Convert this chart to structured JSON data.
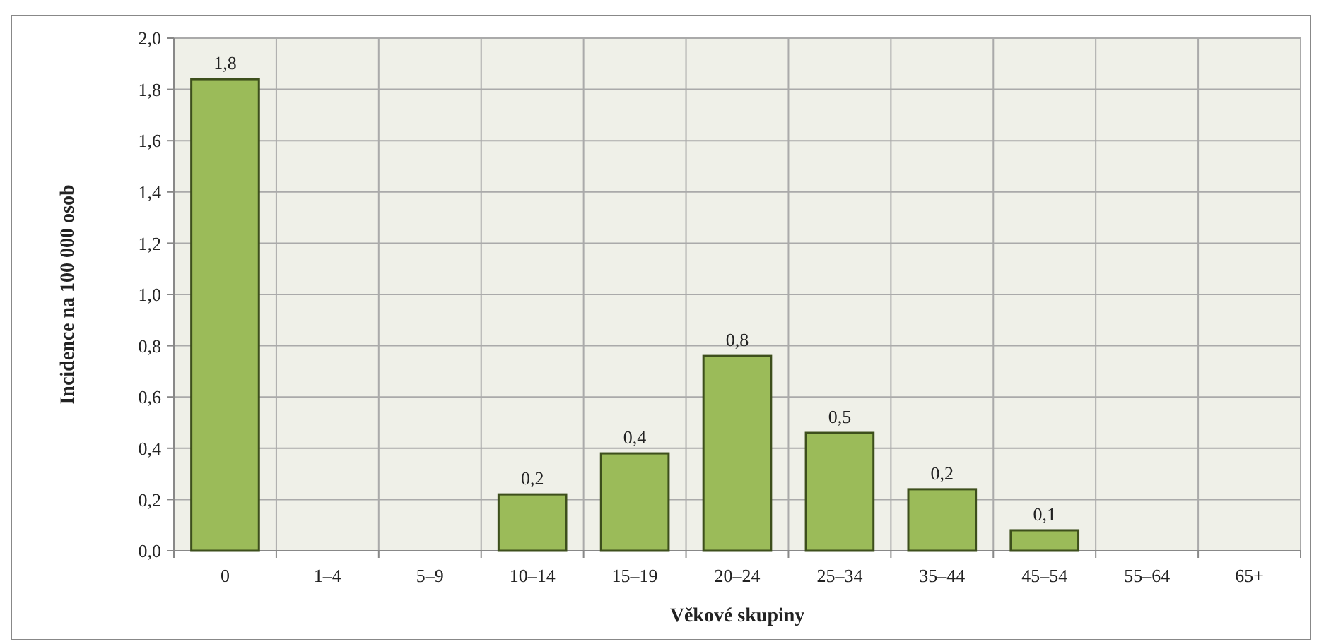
{
  "chart_data": {
    "type": "bar",
    "xlabel": "Věkové skupiny",
    "ylabel": "Incidence na 100 000 osob",
    "categories": [
      "0",
      "1–4",
      "5–9",
      "10–14",
      "15–19",
      "20–24",
      "25–34",
      "35–44",
      "45–54",
      "55–64",
      "65+"
    ],
    "values": [
      1.84,
      null,
      null,
      0.22,
      0.38,
      0.76,
      0.46,
      0.24,
      0.08,
      null,
      null
    ],
    "value_labels": [
      "1,8",
      null,
      null,
      "0,2",
      "0,4",
      "0,8",
      "0,5",
      "0,2",
      "0,1",
      null,
      null
    ],
    "color": "#9bbb59",
    "ylim": [
      0,
      2
    ],
    "yticks": [
      {
        "value": 0,
        "label": "0,0"
      },
      {
        "value": 0.2,
        "label": "0,2"
      },
      {
        "value": 0.4,
        "label": "0,4"
      },
      {
        "value": 0.6,
        "label": "0,6"
      },
      {
        "value": 0.8,
        "label": "0,8"
      },
      {
        "value": 1,
        "label": "1,0"
      },
      {
        "value": 1.2,
        "label": "1,2"
      },
      {
        "value": 1.4,
        "label": "1,4"
      },
      {
        "value": 1.6,
        "label": "1,6"
      },
      {
        "value": 1.8,
        "label": "1,8"
      },
      {
        "value": 2,
        "label": "2,0"
      }
    ],
    "grid": true
  }
}
